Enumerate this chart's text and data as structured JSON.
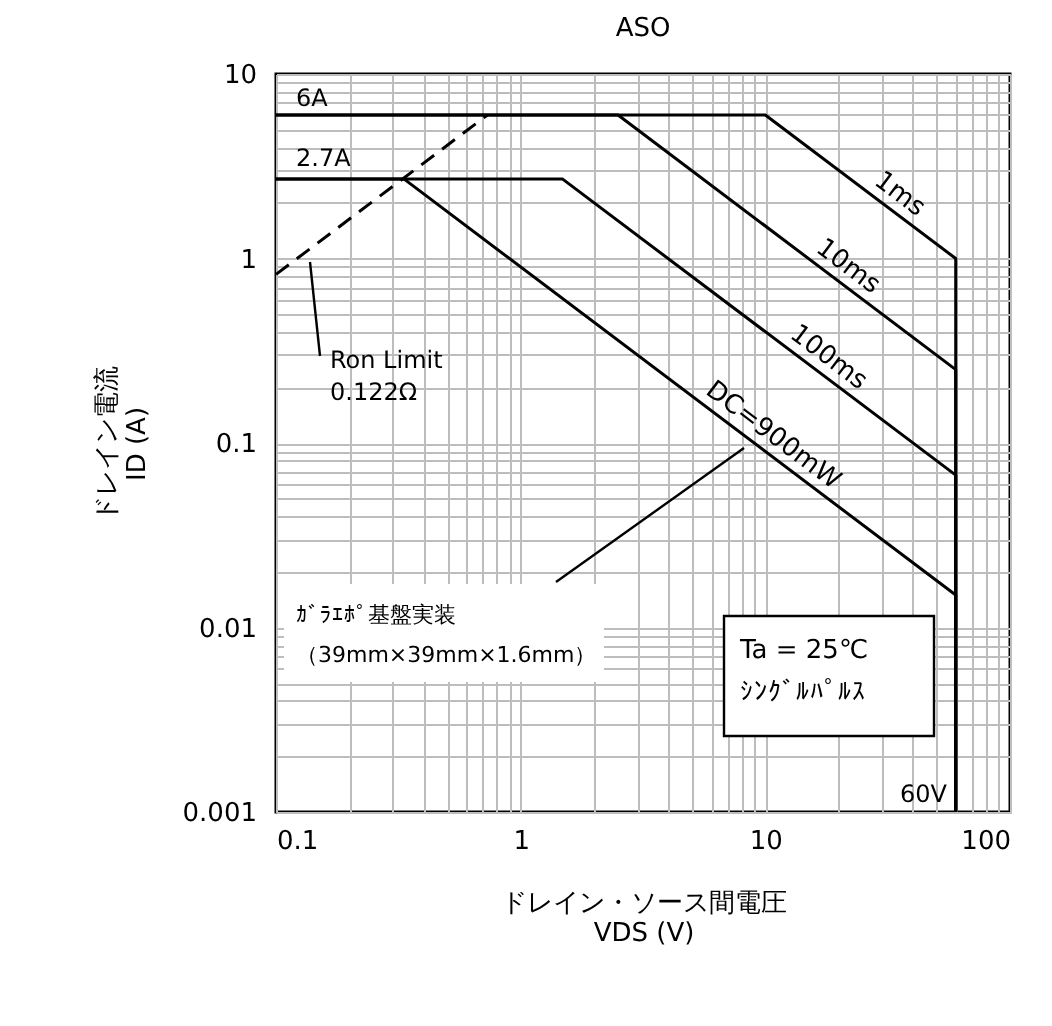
{
  "chart_data": {
    "type": "line",
    "title": "ASO",
    "xlabel": "ドレイン・ソース間電圧\nVDS (V)",
    "ylabel": "ドレイン電流\nID (A)",
    "log": "xy",
    "grid": true,
    "xlim": [
      0.1,
      100
    ],
    "ylim": [
      0.001,
      10
    ],
    "xticks": [
      0.1,
      {
        "value": 0.2,
        "label": null
      },
      {
        "value": 0.3,
        "label": null
      },
      {
        "value": 0.4,
        "label": null
      },
      {
        "value": 0.5,
        "label": null
      },
      {
        "value": 0.6,
        "label": null
      },
      {
        "value": 0.7,
        "label": null
      },
      {
        "value": 0.8,
        "label": null
      },
      {
        "value": 0.9,
        "label": null
      },
      1,
      {
        "value": 2,
        "label": null
      },
      {
        "value": 3,
        "label": null
      },
      {
        "value": 4,
        "label": null
      },
      {
        "value": 5,
        "label": null
      },
      {
        "value": 6,
        "label": null
      },
      {
        "value": 7,
        "label": null
      },
      {
        "value": 8,
        "label": null
      },
      {
        "value": 9,
        "label": null
      },
      10,
      {
        "value": 20,
        "label": null
      },
      {
        "value": 30,
        "label": null
      },
      {
        "value": 40,
        "label": null
      },
      {
        "value": 50,
        "label": null
      },
      {
        "value": 60,
        "label": null
      },
      {
        "value": 70,
        "label": null
      },
      {
        "value": 80,
        "label": null
      },
      {
        "value": 90,
        "label": null
      },
      100
    ],
    "yticks": [
      0.001,
      {
        "value": 0.002,
        "label": null
      },
      {
        "value": 0.003,
        "label": null
      },
      {
        "value": 0.004,
        "label": null
      },
      {
        "value": 0.005,
        "label": null
      },
      {
        "value": 0.006,
        "label": null
      },
      {
        "value": 0.007,
        "label": null
      },
      {
        "value": 0.008,
        "label": null
      },
      {
        "value": 0.009,
        "label": null
      },
      0.01,
      {
        "value": 0.02,
        "label": null
      },
      {
        "value": 0.03,
        "label": null
      },
      {
        "value": 0.04,
        "label": null
      },
      {
        "value": 0.05,
        "label": null
      },
      {
        "value": 0.06,
        "label": null
      },
      {
        "value": 0.07,
        "label": null
      },
      {
        "value": 0.08,
        "label": null
      },
      {
        "value": 0.09,
        "label": null
      },
      0.1,
      {
        "value": 0.2,
        "label": null
      },
      {
        "value": 0.3,
        "label": null
      },
      {
        "value": 0.4,
        "label": null
      },
      {
        "value": 0.5,
        "label": null
      },
      {
        "value": 0.6,
        "label": null
      },
      {
        "value": 0.7,
        "label": null
      },
      {
        "value": 0.8,
        "label": null
      },
      {
        "value": 0.9,
        "label": null
      },
      1,
      {
        "value": 2,
        "label": null
      },
      {
        "value": 3,
        "label": null
      },
      {
        "value": 4,
        "label": null
      },
      {
        "value": 5,
        "label": null
      },
      {
        "value": 6,
        "label": null
      },
      {
        "value": 7,
        "label": null
      },
      {
        "value": 8,
        "label": null
      },
      {
        "value": 9,
        "label": null
      },
      10
    ],
    "series": [
      {
        "name": "1ms",
        "color": "#000000",
        "x": [
          0.1,
          10,
          60,
          60
        ],
        "values": [
          6,
          6,
          1,
          0.001
        ]
      },
      {
        "name": "10ms",
        "color": "#000000",
        "x": [
          0.1,
          2.5,
          60,
          60
        ],
        "values": [
          6,
          6,
          0.25,
          0.001
        ]
      },
      {
        "name": "100ms",
        "color": "#000000",
        "x": [
          0.1,
          1.48,
          60,
          60
        ],
        "values": [
          2.7,
          2.7,
          0.067,
          0.001
        ]
      },
      {
        "name": "DC=900mW",
        "color": "#000000",
        "x": [
          0.1,
          0.333,
          60,
          60
        ],
        "values": [
          2.7,
          2.7,
          0.015,
          0.001
        ]
      },
      {
        "color": "#000000",
        "line_style": "dashed",
        "x": [
          0.1,
          0.732
        ],
        "values": [
          0.82,
          6
        ]
      }
    ],
    "annotations": [
      "6A",
      "2.7A",
      "60V",
      "Ron Limit",
      "0.122Ω",
      "ｶﾞﾗｴﾎﾟ基盤実装",
      "（39mm×39mm×1.6mm）",
      "Ta = 25℃",
      "ｼﾝｸﾞﾙﾊﾟﾙｽ"
    ]
  }
}
